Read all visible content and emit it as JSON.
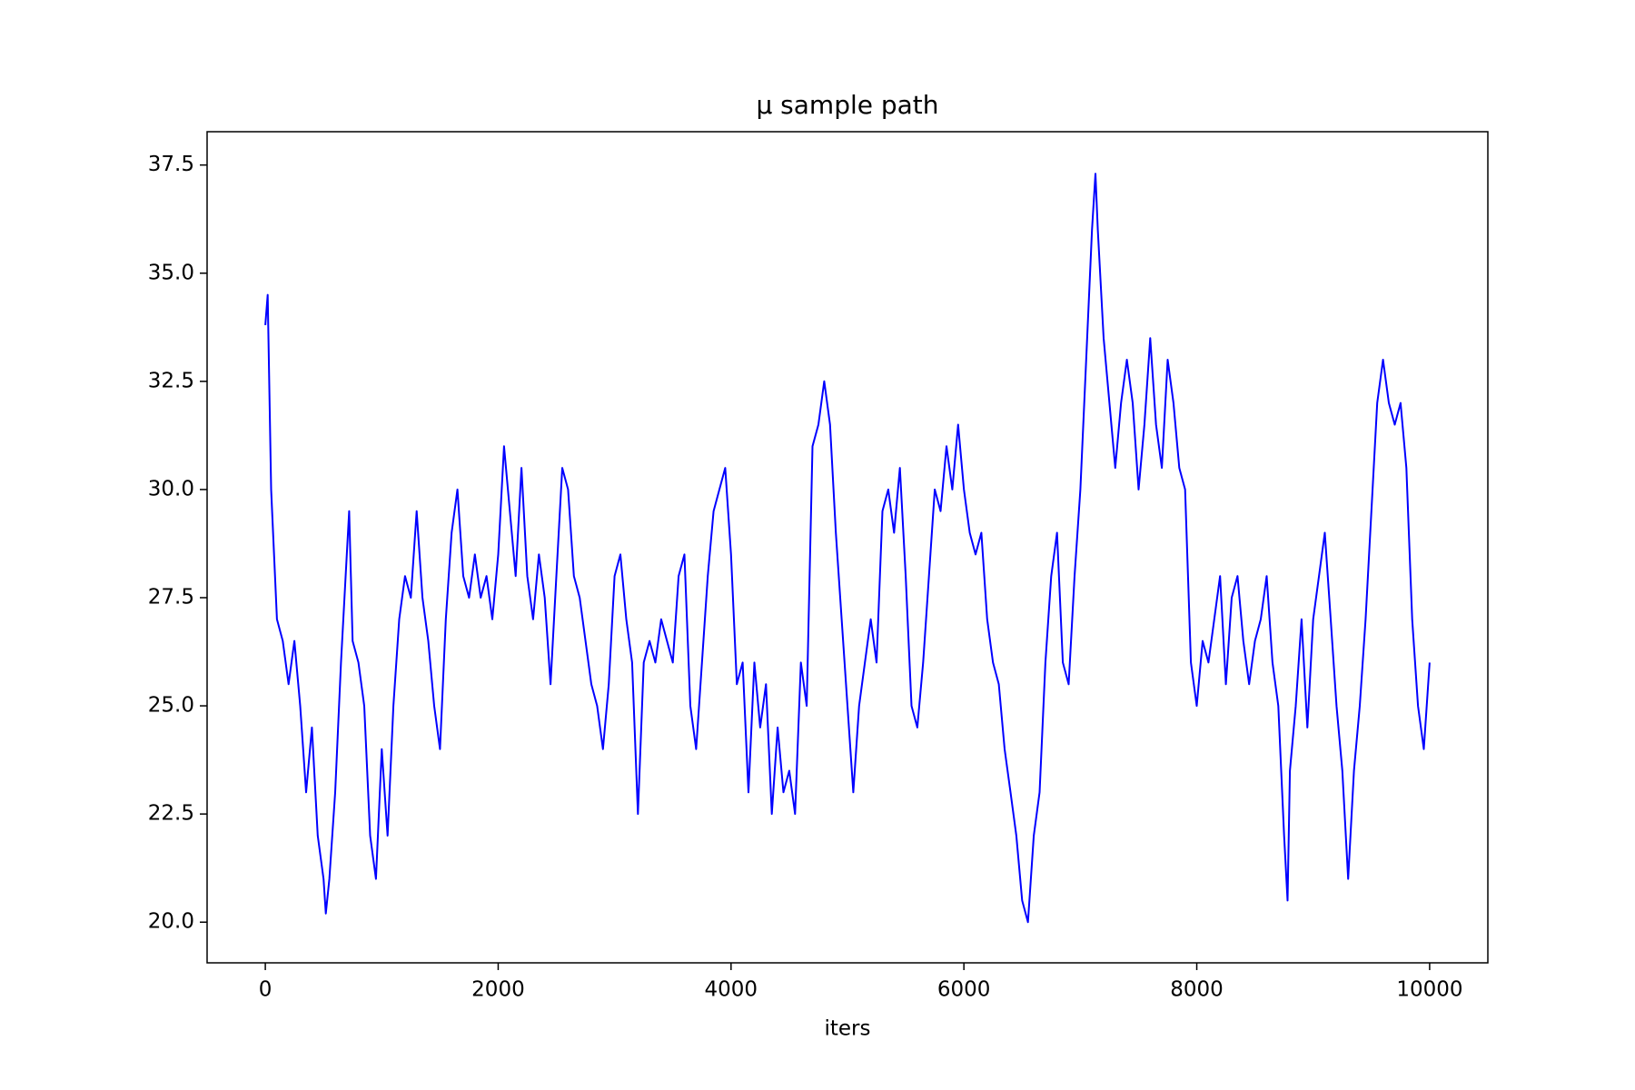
{
  "chart_data": {
    "type": "line",
    "title": "μ sample path",
    "x_label": "iters",
    "x": [
      0,
      20,
      50,
      100,
      150,
      200,
      250,
      300,
      350,
      400,
      450,
      500,
      520,
      550,
      600,
      650,
      700,
      720,
      750,
      800,
      850,
      900,
      950,
      1000,
      1050,
      1100,
      1150,
      1200,
      1250,
      1300,
      1350,
      1400,
      1450,
      1500,
      1550,
      1600,
      1650,
      1700,
      1750,
      1800,
      1850,
      1900,
      1950,
      2000,
      2050,
      2100,
      2150,
      2200,
      2250,
      2300,
      2350,
      2400,
      2450,
      2500,
      2550,
      2600,
      2650,
      2700,
      2750,
      2800,
      2850,
      2900,
      2950,
      3000,
      3050,
      3100,
      3150,
      3200,
      3250,
      3300,
      3350,
      3400,
      3450,
      3500,
      3550,
      3600,
      3650,
      3700,
      3750,
      3800,
      3850,
      3900,
      3950,
      4000,
      4050,
      4100,
      4150,
      4200,
      4250,
      4300,
      4350,
      4400,
      4450,
      4500,
      4550,
      4600,
      4650,
      4700,
      4750,
      4800,
      4850,
      4900,
      4950,
      5000,
      5050,
      5100,
      5150,
      5200,
      5250,
      5300,
      5350,
      5400,
      5450,
      5500,
      5550,
      5600,
      5650,
      5700,
      5750,
      5800,
      5850,
      5900,
      5950,
      6000,
      6050,
      6100,
      6150,
      6200,
      6250,
      6300,
      6350,
      6400,
      6450,
      6500,
      6550,
      6600,
      6650,
      6700,
      6750,
      6800,
      6850,
      6900,
      6950,
      7000,
      7050,
      7100,
      7130,
      7150,
      7200,
      7250,
      7300,
      7350,
      7400,
      7450,
      7500,
      7550,
      7600,
      7650,
      7700,
      7750,
      7800,
      7850,
      7900,
      7950,
      8000,
      8050,
      8100,
      8150,
      8200,
      8250,
      8300,
      8350,
      8400,
      8450,
      8500,
      8550,
      8600,
      8650,
      8700,
      8750,
      8780,
      8800,
      8850,
      8900,
      8950,
      9000,
      9050,
      9100,
      9150,
      9200,
      9250,
      9300,
      9350,
      9400,
      9450,
      9500,
      9550,
      9600,
      9650,
      9700,
      9750,
      9800,
      9850,
      9900,
      9950,
      10000
    ],
    "series": [
      {
        "color": "#0000ff",
        "values": [
          33.8,
          34.5,
          30,
          27,
          26.5,
          25.5,
          26.5,
          25,
          23,
          24.5,
          22,
          21,
          20.2,
          21,
          23,
          26,
          28.5,
          29.5,
          26.5,
          26,
          25,
          22,
          21,
          24,
          22,
          25,
          27,
          28,
          27.5,
          29.5,
          27.5,
          26.5,
          25,
          24,
          27,
          29,
          30,
          28,
          27.5,
          28.5,
          27.5,
          28,
          27,
          28.5,
          31,
          29.5,
          28,
          30.5,
          28,
          27,
          28.5,
          27.5,
          25.5,
          28,
          30.5,
          30,
          28,
          27.5,
          26.5,
          25.5,
          25,
          24,
          25.5,
          28,
          28.5,
          27,
          26,
          22.5,
          26,
          26.5,
          26,
          27,
          26.5,
          26,
          28,
          28.5,
          25,
          24,
          26,
          28,
          29.5,
          30,
          30.5,
          28.5,
          25.5,
          26,
          23,
          26,
          24.5,
          25.5,
          22.5,
          24.5,
          23,
          23.5,
          22.5,
          26,
          25,
          31,
          31.5,
          32.5,
          31.5,
          29,
          27,
          25,
          23,
          25,
          26,
          27,
          26,
          29.5,
          30,
          29,
          30.5,
          28,
          25,
          24.5,
          26,
          28,
          30,
          29.5,
          31,
          30,
          31.5,
          30,
          29,
          28.5,
          29,
          27,
          26,
          25.5,
          24,
          23,
          22,
          20.5,
          20,
          22,
          23,
          26,
          28,
          29,
          26,
          25.5,
          28,
          30,
          33,
          36,
          37.3,
          36,
          33.5,
          32,
          30.5,
          32,
          33,
          32,
          30,
          31.5,
          33.5,
          31.5,
          30.5,
          33,
          32,
          30.5,
          30,
          26,
          25,
          26.5,
          26,
          27,
          28,
          25.5,
          27.5,
          28,
          26.5,
          25.5,
          26.5,
          27,
          28,
          26,
          25,
          22,
          20.5,
          23.5,
          25,
          27,
          24.5,
          27,
          28,
          29,
          27,
          25,
          23.5,
          21,
          23.5,
          25,
          27,
          29.5,
          32,
          33,
          32,
          31.5,
          32,
          30.5,
          27,
          25,
          24,
          26
        ]
      }
    ],
    "xlim": [
      -500,
      10500
    ],
    "ylim": [
      19.06,
      38.27
    ],
    "xticks": [
      0,
      2000,
      4000,
      6000,
      8000,
      10000
    ],
    "yticks": [
      {
        "value": 20,
        "label": "20.0"
      },
      22.5,
      {
        "value": 25,
        "label": "25.0"
      },
      27.5,
      {
        "value": 30,
        "label": "30.0"
      },
      32.5,
      {
        "value": 35,
        "label": "35.0"
      },
      37.5
    ]
  }
}
